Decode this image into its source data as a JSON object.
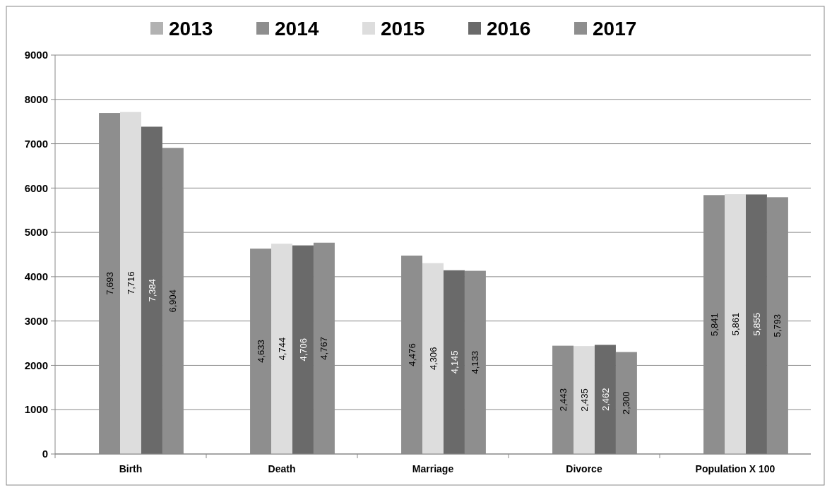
{
  "chart_data": {
    "type": "bar",
    "categories": [
      "Birth",
      "Death",
      "Marriage",
      "Divorce",
      "Population X 100"
    ],
    "series": [
      {
        "name": "2013",
        "color": "#b2b2b2",
        "values": [
          null,
          null,
          null,
          null,
          null
        ]
      },
      {
        "name": "2014",
        "color": "#8e8e8e",
        "values": [
          7693,
          4633,
          4476,
          2443,
          5841
        ],
        "value_labels": [
          "7,693",
          "4,633",
          "4,476",
          "2,443",
          "5,841"
        ]
      },
      {
        "name": "2015",
        "color": "#dddddd",
        "values": [
          7716,
          4744,
          4306,
          2435,
          5861
        ],
        "value_labels": [
          "7,716",
          "4,744",
          "4,306",
          "2,435",
          "5,861"
        ]
      },
      {
        "name": "2016",
        "color": "#6a6a6a",
        "values": [
          7384,
          4706,
          4145,
          2462,
          5855
        ],
        "value_labels": [
          "7,384",
          "4,706",
          "4,145",
          "2,462",
          "5,855"
        ]
      },
      {
        "name": "2017",
        "color": "#8e8e8e",
        "values": [
          6904,
          4767,
          4133,
          2300,
          5793
        ],
        "value_labels": [
          "6,904",
          "4,767",
          "4,133",
          "2,300",
          "5,793"
        ]
      }
    ],
    "ylim": [
      0,
      9000
    ],
    "yticks": [
      0,
      1000,
      2000,
      3000,
      4000,
      5000,
      6000,
      7000,
      8000,
      9000
    ],
    "grid": "y",
    "legend": "top"
  }
}
